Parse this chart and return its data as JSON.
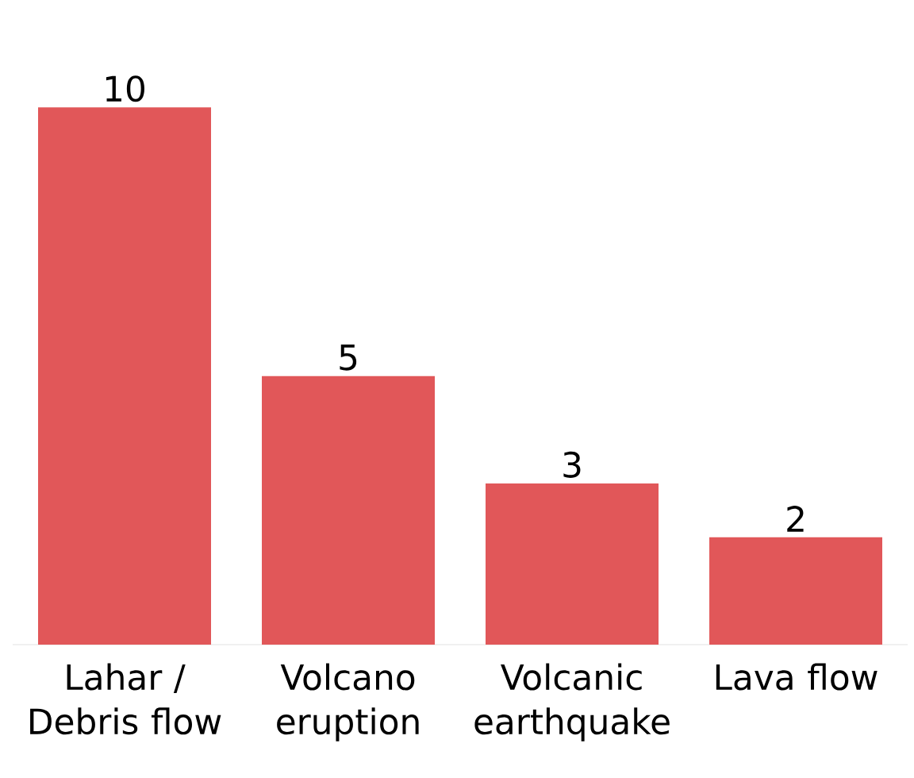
{
  "chart_data": {
    "type": "bar",
    "categories": [
      "Lahar / Debris flow",
      "Volcano eruption",
      "Volcanic earthquake",
      "Lava flow"
    ],
    "values": [
      10,
      5,
      3,
      2
    ],
    "color": "#e15759",
    "data_labels": true
  }
}
